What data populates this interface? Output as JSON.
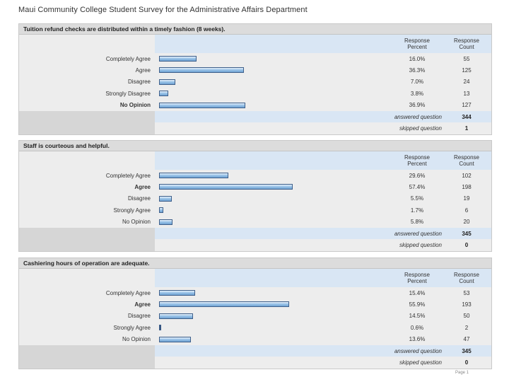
{
  "page_title": "Maui Community College Student Survey for the Administrative Affairs Department",
  "header": {
    "percent_label_1": "Response",
    "percent_label_2": "Percent",
    "count_label_1": "Response",
    "count_label_2": "Count"
  },
  "summary_labels": {
    "answered": "answered question",
    "skipped": "skipped question"
  },
  "questions": [
    {
      "title": "Tuition refund checks are distributed within a timely fashion (8 weeks).",
      "rows": [
        {
          "label": "Completely Agree",
          "percent": "16.0%",
          "count": "55",
          "value": 16.0
        },
        {
          "label": "Agree",
          "percent": "36.3%",
          "count": "125",
          "value": 36.3
        },
        {
          "label": "Disagree",
          "percent": "7.0%",
          "count": "24",
          "value": 7.0
        },
        {
          "label": "Strongly Disagree",
          "percent": "3.8%",
          "count": "13",
          "value": 3.8
        },
        {
          "label": "No Opinion",
          "percent": "36.9%",
          "count": "127",
          "value": 36.9
        }
      ],
      "answered": "344",
      "skipped": "1"
    },
    {
      "title": "Staff is courteous and helpful.",
      "rows": [
        {
          "label": "Completely Agree",
          "percent": "29.6%",
          "count": "102",
          "value": 29.6
        },
        {
          "label": "Agree",
          "percent": "57.4%",
          "count": "198",
          "value": 57.4
        },
        {
          "label": "Disagree",
          "percent": "5.5%",
          "count": "19",
          "value": 5.5
        },
        {
          "label": "Strongly Agree",
          "percent": "1.7%",
          "count": "6",
          "value": 1.7
        },
        {
          "label": "No Opinion",
          "percent": "5.8%",
          "count": "20",
          "value": 5.8
        }
      ],
      "answered": "345",
      "skipped": "0"
    },
    {
      "title": "Cashiering hours of operation are adequate.",
      "rows": [
        {
          "label": "Completely Agree",
          "percent": "15.4%",
          "count": "53",
          "value": 15.4
        },
        {
          "label": "Agree",
          "percent": "55.9%",
          "count": "193",
          "value": 55.9
        },
        {
          "label": "Disagree",
          "percent": "14.5%",
          "count": "50",
          "value": 14.5
        },
        {
          "label": "Strongly Agree",
          "percent": "0.6%",
          "count": "2",
          "value": 0.6
        },
        {
          "label": "No Opinion",
          "percent": "13.6%",
          "count": "47",
          "value": 13.6
        }
      ],
      "answered": "345",
      "skipped": "0"
    }
  ],
  "footer": "Page 1"
}
